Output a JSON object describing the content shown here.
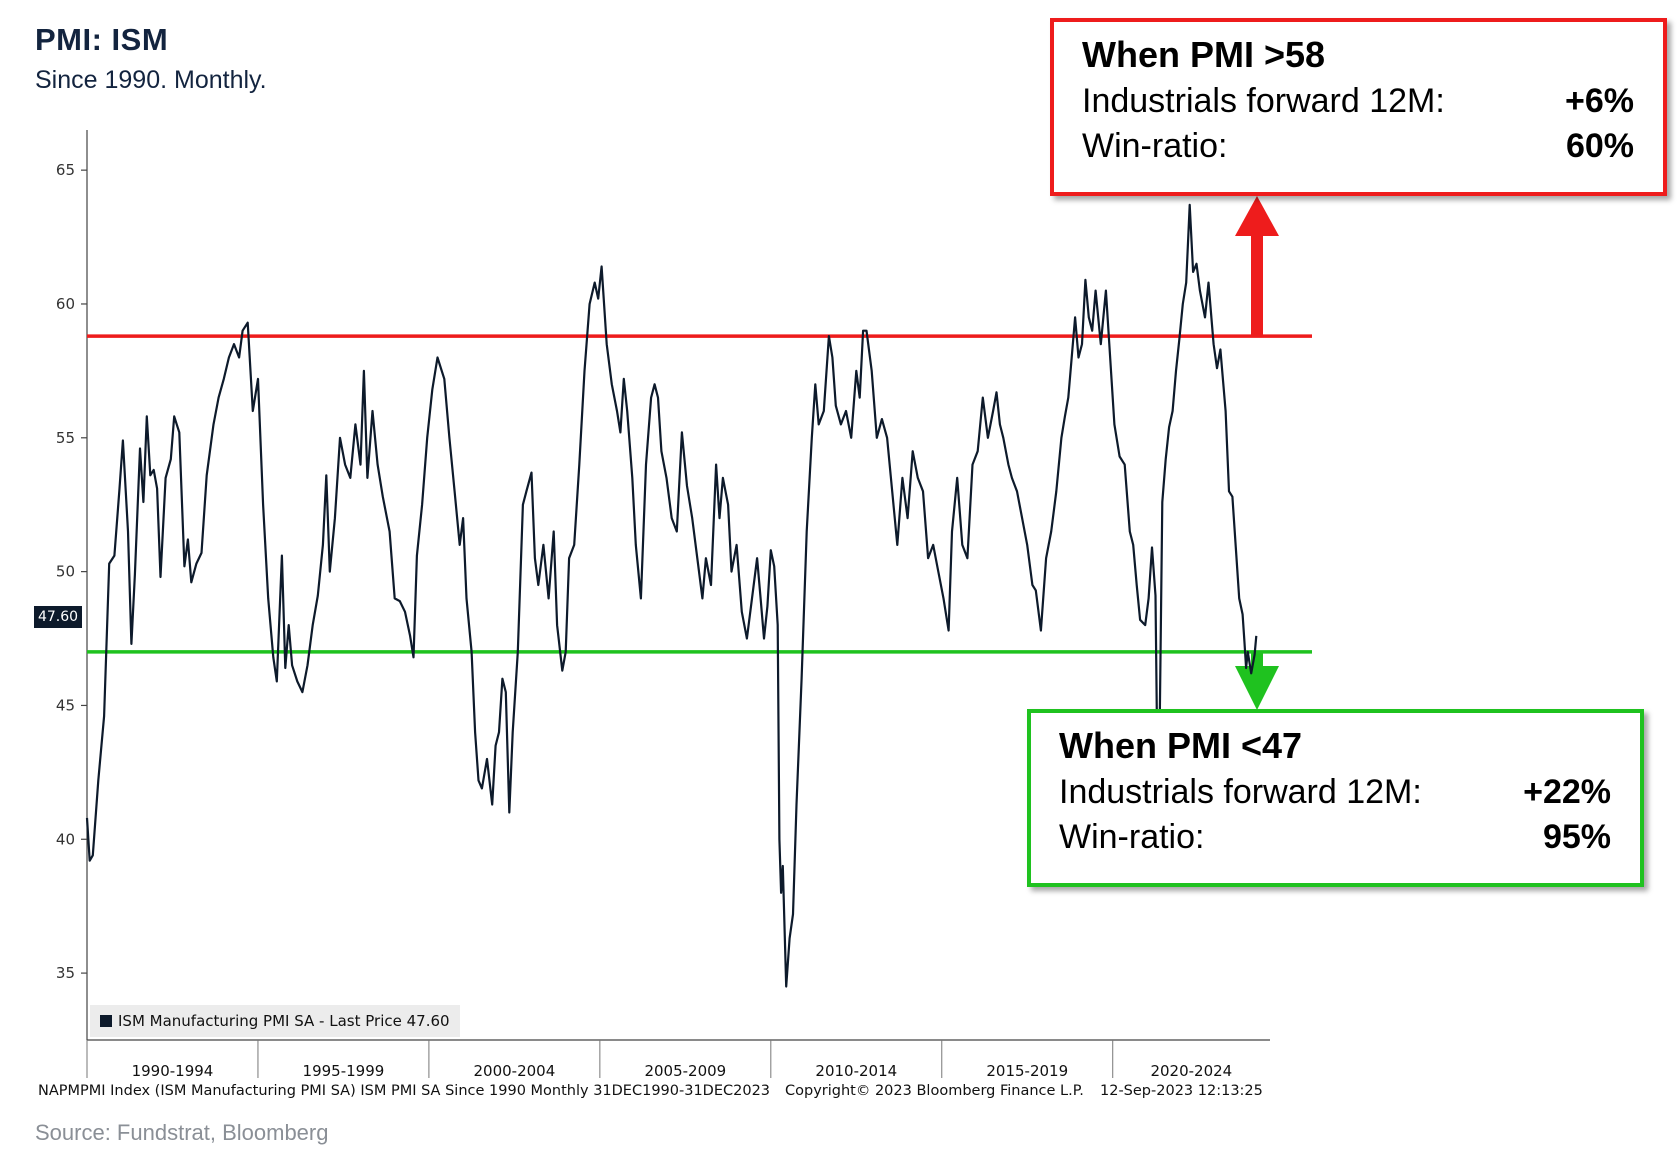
{
  "header": {
    "title": "PMI: ISM",
    "subtitle": "Since 1990. Monthly."
  },
  "callouts": {
    "high": {
      "heading": "When PMI >58",
      "row1_label": "Industrials forward 12M:",
      "row1_value": "+6%",
      "row2_label": "Win-ratio:",
      "row2_value": "60%",
      "color": "#ee1c1c"
    },
    "low": {
      "heading": "When PMI <47",
      "row1_label": "Industrials forward 12M:",
      "row1_value": "+22%",
      "row2_label": "Win-ratio:",
      "row2_value": "95%",
      "color": "#1fc21f"
    }
  },
  "legend": {
    "label": "ISM Manufacturing PMI SA - Last Price 47.60"
  },
  "last_price_tag": "47.60",
  "footer": {
    "index_text": "NAPMPMI Index (ISM Manufacturing PMI SA) ISM PMI SA Since 1990  Monthly 31DEC1990-31DEC2023",
    "copyright": "Copyright© 2023 Bloomberg Finance L.P.",
    "timestamp": "12-Sep-2023 12:13:25"
  },
  "source": "Source: Fundstrat, Bloomberg",
  "chart_data": {
    "type": "line",
    "title": "PMI: ISM",
    "series": [
      {
        "name": "ISM Manufacturing PMI SA",
        "color": "#0d1a2b",
        "values": [
          [
            1990.0,
            40.8
          ],
          [
            1990.08,
            39.2
          ],
          [
            1990.17,
            39.4
          ],
          [
            1990.33,
            42.2
          ],
          [
            1990.5,
            44.6
          ],
          [
            1990.65,
            50.3
          ],
          [
            1990.8,
            50.6
          ],
          [
            1990.95,
            53.1
          ],
          [
            1991.05,
            54.9
          ],
          [
            1991.2,
            51.5
          ],
          [
            1991.3,
            47.3
          ],
          [
            1991.4,
            49.9
          ],
          [
            1991.55,
            54.6
          ],
          [
            1991.65,
            52.6
          ],
          [
            1991.75,
            55.8
          ],
          [
            1991.85,
            53.6
          ],
          [
            1991.95,
            53.8
          ],
          [
            1992.05,
            53.1
          ],
          [
            1992.15,
            49.8
          ],
          [
            1992.3,
            53.5
          ],
          [
            1992.45,
            54.2
          ],
          [
            1992.55,
            55.8
          ],
          [
            1992.7,
            55.2
          ],
          [
            1992.85,
            50.2
          ],
          [
            1992.95,
            51.2
          ],
          [
            1993.05,
            49.6
          ],
          [
            1993.2,
            50.3
          ],
          [
            1993.35,
            50.7
          ],
          [
            1993.5,
            53.6
          ],
          [
            1993.7,
            55.5
          ],
          [
            1993.85,
            56.5
          ],
          [
            1994.0,
            57.2
          ],
          [
            1994.15,
            58.0
          ],
          [
            1994.3,
            58.5
          ],
          [
            1994.45,
            58.0
          ],
          [
            1994.55,
            59.0
          ],
          [
            1994.7,
            59.3
          ],
          [
            1994.85,
            56.0
          ],
          [
            1995.0,
            57.2
          ],
          [
            1995.15,
            52.5
          ],
          [
            1995.3,
            49.0
          ],
          [
            1995.45,
            46.8
          ],
          [
            1995.55,
            45.9
          ],
          [
            1995.7,
            50.6
          ],
          [
            1995.8,
            46.4
          ],
          [
            1995.9,
            48.0
          ],
          [
            1996.0,
            46.5
          ],
          [
            1996.15,
            45.9
          ],
          [
            1996.3,
            45.5
          ],
          [
            1996.45,
            46.5
          ],
          [
            1996.6,
            48.0
          ],
          [
            1996.75,
            49.1
          ],
          [
            1996.9,
            51.0
          ],
          [
            1997.0,
            53.6
          ],
          [
            1997.1,
            50.0
          ],
          [
            1997.25,
            52.0
          ],
          [
            1997.4,
            55.0
          ],
          [
            1997.55,
            54.0
          ],
          [
            1997.7,
            53.5
          ],
          [
            1997.85,
            55.5
          ],
          [
            1998.0,
            54.0
          ],
          [
            1998.1,
            57.5
          ],
          [
            1998.2,
            53.5
          ],
          [
            1998.35,
            56.0
          ],
          [
            1998.5,
            54.0
          ],
          [
            1998.65,
            52.8
          ],
          [
            1998.85,
            51.5
          ],
          [
            1999.0,
            49.0
          ],
          [
            1999.15,
            48.9
          ],
          [
            1999.3,
            48.5
          ],
          [
            1999.45,
            47.6
          ],
          [
            1999.55,
            46.8
          ],
          [
            1999.65,
            50.6
          ],
          [
            1999.8,
            52.5
          ],
          [
            1999.95,
            55.0
          ],
          [
            2000.1,
            56.8
          ],
          [
            2000.25,
            58.0
          ],
          [
            2000.45,
            57.2
          ],
          [
            2000.6,
            55.0
          ],
          [
            2000.75,
            53.0
          ],
          [
            2000.9,
            51.0
          ],
          [
            2001.0,
            52.0
          ],
          [
            2001.1,
            49.0
          ],
          [
            2001.25,
            47.0
          ],
          [
            2001.35,
            44.0
          ],
          [
            2001.45,
            42.2
          ],
          [
            2001.55,
            41.9
          ],
          [
            2001.7,
            43.0
          ],
          [
            2001.85,
            41.3
          ],
          [
            2001.95,
            43.5
          ],
          [
            2002.05,
            44.0
          ],
          [
            2002.15,
            46.0
          ],
          [
            2002.25,
            45.5
          ],
          [
            2002.35,
            41.0
          ],
          [
            2002.45,
            44.0
          ],
          [
            2002.6,
            47.0
          ],
          [
            2002.75,
            52.5
          ],
          [
            2002.85,
            53.0
          ],
          [
            2003.0,
            53.7
          ],
          [
            2003.1,
            50.5
          ],
          [
            2003.2,
            49.5
          ],
          [
            2003.35,
            51.0
          ],
          [
            2003.5,
            49.0
          ],
          [
            2003.65,
            51.5
          ],
          [
            2003.75,
            48.0
          ],
          [
            2003.9,
            46.3
          ],
          [
            2004.0,
            47.0
          ],
          [
            2004.1,
            50.5
          ],
          [
            2004.25,
            51.0
          ],
          [
            2004.4,
            54.0
          ],
          [
            2004.55,
            57.5
          ],
          [
            2004.7,
            60.0
          ],
          [
            2004.85,
            60.8
          ],
          [
            2004.95,
            60.2
          ],
          [
            2005.05,
            61.4
          ],
          [
            2005.2,
            58.5
          ],
          [
            2005.35,
            57.0
          ],
          [
            2005.5,
            56.0
          ],
          [
            2005.6,
            55.2
          ],
          [
            2005.7,
            57.2
          ],
          [
            2005.8,
            56.0
          ],
          [
            2005.95,
            53.5
          ],
          [
            2006.05,
            51.0
          ],
          [
            2006.2,
            49.0
          ],
          [
            2006.35,
            54.0
          ],
          [
            2006.5,
            56.5
          ],
          [
            2006.6,
            57.0
          ],
          [
            2006.7,
            56.5
          ],
          [
            2006.8,
            54.5
          ],
          [
            2006.95,
            53.5
          ],
          [
            2007.1,
            52.0
          ],
          [
            2007.25,
            51.5
          ],
          [
            2007.4,
            55.2
          ],
          [
            2007.55,
            53.2
          ],
          [
            2007.7,
            52.0
          ],
          [
            2007.85,
            50.5
          ],
          [
            2008.0,
            49.0
          ],
          [
            2008.1,
            50.5
          ],
          [
            2008.25,
            49.5
          ],
          [
            2008.4,
            54.0
          ],
          [
            2008.5,
            52.0
          ],
          [
            2008.6,
            53.5
          ],
          [
            2008.75,
            52.5
          ],
          [
            2008.85,
            50.0
          ],
          [
            2009.0,
            51.0
          ],
          [
            2009.15,
            48.5
          ],
          [
            2009.3,
            47.5
          ],
          [
            2009.45,
            49.0
          ],
          [
            2009.6,
            50.5
          ],
          [
            2009.7,
            49.0
          ],
          [
            2009.8,
            47.5
          ],
          [
            2009.9,
            48.7
          ],
          [
            2010.0,
            50.8
          ],
          [
            2010.1,
            50.2
          ],
          [
            2010.2,
            48.0
          ],
          [
            2010.25,
            40.0
          ],
          [
            2010.3,
            38.0
          ],
          [
            2010.35,
            39.0
          ],
          [
            2010.45,
            34.5
          ],
          [
            2010.55,
            36.3
          ],
          [
            2010.65,
            37.2
          ],
          [
            2010.75,
            41.3
          ],
          [
            2010.9,
            46.0
          ],
          [
            2011.05,
            51.5
          ],
          [
            2011.2,
            55.0
          ],
          [
            2011.3,
            57.0
          ],
          [
            2011.4,
            55.5
          ],
          [
            2011.55,
            56.0
          ],
          [
            2011.7,
            58.8
          ],
          [
            2011.8,
            58.0
          ],
          [
            2011.9,
            56.2
          ],
          [
            2012.05,
            55.5
          ],
          [
            2012.2,
            56.0
          ],
          [
            2012.35,
            55.0
          ],
          [
            2012.5,
            57.5
          ],
          [
            2012.6,
            56.5
          ],
          [
            2012.7,
            59.0
          ],
          [
            2012.8,
            59.0
          ],
          [
            2012.95,
            57.5
          ],
          [
            2013.1,
            55.0
          ],
          [
            2013.25,
            55.7
          ],
          [
            2013.4,
            55.0
          ],
          [
            2013.55,
            53.0
          ],
          [
            2013.7,
            51.0
          ],
          [
            2013.85,
            53.5
          ],
          [
            2014.0,
            52.0
          ],
          [
            2014.15,
            54.5
          ],
          [
            2014.3,
            53.5
          ],
          [
            2014.45,
            53.0
          ],
          [
            2014.6,
            50.5
          ],
          [
            2014.75,
            51.0
          ],
          [
            2014.9,
            50.0
          ],
          [
            2015.05,
            49.0
          ],
          [
            2015.2,
            47.8
          ],
          [
            2015.3,
            51.5
          ],
          [
            2015.45,
            53.5
          ],
          [
            2015.6,
            51.0
          ],
          [
            2015.75,
            50.5
          ],
          [
            2015.9,
            54.0
          ],
          [
            2016.05,
            54.5
          ],
          [
            2016.2,
            56.5
          ],
          [
            2016.35,
            55.0
          ],
          [
            2016.5,
            56.0
          ],
          [
            2016.6,
            56.7
          ],
          [
            2016.7,
            55.5
          ],
          [
            2016.8,
            55.0
          ],
          [
            2016.95,
            54.0
          ],
          [
            2017.05,
            53.5
          ],
          [
            2017.2,
            53.0
          ],
          [
            2017.35,
            52.0
          ],
          [
            2017.5,
            51.0
          ],
          [
            2017.65,
            49.5
          ],
          [
            2017.75,
            49.3
          ],
          [
            2017.9,
            47.8
          ],
          [
            2018.05,
            50.5
          ],
          [
            2018.2,
            51.5
          ],
          [
            2018.35,
            53.0
          ],
          [
            2018.5,
            55.0
          ],
          [
            2018.6,
            55.8
          ],
          [
            2018.7,
            56.5
          ],
          [
            2018.8,
            58.0
          ],
          [
            2018.9,
            59.5
          ],
          [
            2019.0,
            58.0
          ],
          [
            2019.1,
            58.5
          ],
          [
            2019.2,
            60.9
          ],
          [
            2019.3,
            59.5
          ],
          [
            2019.4,
            59.0
          ],
          [
            2019.5,
            60.5
          ],
          [
            2019.65,
            58.5
          ],
          [
            2019.8,
            60.5
          ],
          [
            2019.9,
            58.5
          ],
          [
            2020.05,
            55.5
          ],
          [
            2020.2,
            54.3
          ],
          [
            2020.35,
            54.0
          ],
          [
            2020.5,
            51.5
          ],
          [
            2020.6,
            51.0
          ],
          [
            2020.7,
            49.5
          ],
          [
            2020.8,
            48.2
          ],
          [
            2020.95,
            48.0
          ],
          [
            2021.05,
            49.0
          ],
          [
            2021.15,
            50.9
          ],
          [
            2021.25,
            49.1
          ],
          [
            2021.3,
            43.4
          ],
          [
            2021.35,
            41.7
          ],
          [
            2021.45,
            52.6
          ],
          [
            2021.55,
            54.2
          ],
          [
            2021.65,
            55.4
          ],
          [
            2021.75,
            56.0
          ],
          [
            2021.85,
            57.5
          ],
          [
            2021.95,
            58.7
          ],
          [
            2022.05,
            60.0
          ],
          [
            2022.15,
            60.8
          ],
          [
            2022.25,
            63.7
          ],
          [
            2022.35,
            61.2
          ],
          [
            2022.45,
            61.5
          ],
          [
            2022.55,
            60.5
          ],
          [
            2022.7,
            59.5
          ],
          [
            2022.8,
            60.8
          ],
          [
            2022.95,
            58.5
          ],
          [
            2023.05,
            57.6
          ],
          [
            2023.15,
            58.3
          ],
          [
            2023.3,
            56.0
          ],
          [
            2023.4,
            53.0
          ],
          [
            2023.5,
            52.8
          ],
          [
            2023.6,
            50.9
          ],
          [
            2023.7,
            49.0
          ],
          [
            2023.8,
            48.4
          ],
          [
            2023.85,
            47.4
          ],
          [
            2023.9,
            46.4
          ],
          [
            2023.95,
            47.0
          ],
          [
            2024.05,
            46.2
          ],
          [
            2024.15,
            46.9
          ],
          [
            2024.2,
            47.6
          ]
        ]
      }
    ],
    "threshold_lines": [
      {
        "value": 58.8,
        "color": "#ee1c1c"
      },
      {
        "value": 47.0,
        "color": "#1fc21f"
      }
    ],
    "y_ticks": [
      "35",
      "40",
      "45",
      "50",
      "55",
      "60",
      "65"
    ],
    "ylim": [
      32.5,
      66.5
    ],
    "x_ticks": [
      "1990-1994",
      "1995-1999",
      "2000-2004",
      "2005-2009",
      "2010-2014",
      "2015-2019",
      "2020-2024"
    ],
    "xlim": [
      1990.0,
      2024.6
    ],
    "grid": false,
    "legend_position": "bottom-left"
  }
}
